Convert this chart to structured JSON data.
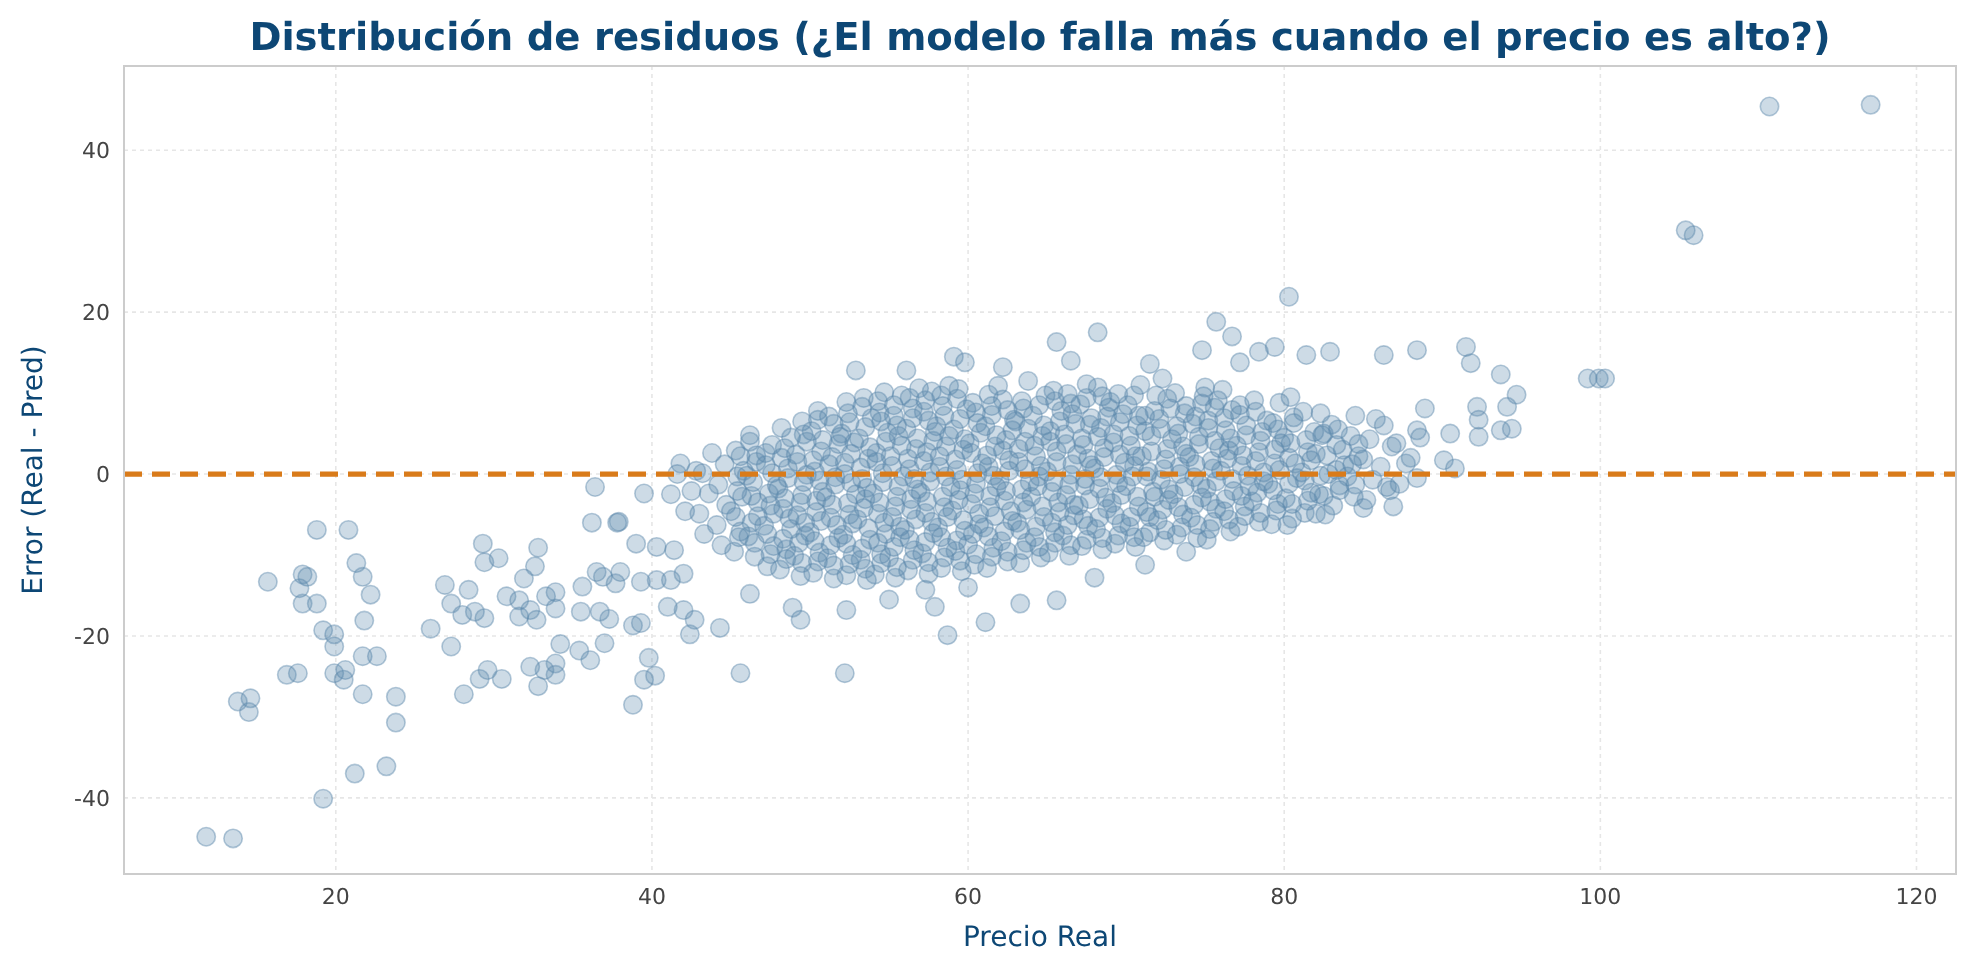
{
  "chart_data": {
    "type": "scatter",
    "title": "Distribución de residuos (¿El modelo falla más cuando el precio es alto?)",
    "xlabel": "Precio Real",
    "ylabel": "Error (Real - Pred)",
    "color": "#5b87ab",
    "marker": "circle",
    "grid": true,
    "xlim": [
      6.6,
      122.5
    ],
    "xticks": [
      20,
      40,
      60,
      80,
      100,
      120
    ],
    "ylim": [
      -49.4,
      50.4
    ],
    "yticks": [
      -40,
      -20,
      0,
      20,
      40
    ],
    "ref_lines": [
      {
        "axis": "y",
        "value": 0,
        "color": "#d97b1a",
        "line_style": "dashed"
      }
    ],
    "x": [
      11.8,
      13.5,
      13.8,
      14.5,
      14.6,
      15.7,
      18.8,
      20.8,
      17.9,
      18.2,
      17.7,
      17.9,
      18.8,
      19.2,
      19.9,
      19.9,
      16.9,
      17.6,
      21.3,
      21.7,
      22.2,
      21.8,
      21.7,
      22.6,
      19.9,
      20.6,
      20.5,
      21.7,
      23.8,
      23.8,
      21.2,
      23.2,
      19.2,
      26.0,
      26.9,
      27.3,
      27.3,
      28.4,
      28.0,
      28.8,
      29.4,
      28.1,
      29.1,
      29.6,
      30.5,
      29.3,
      29.4,
      30.3,
      30.8,
      31.6,
      31.6,
      32.3,
      32.7,
      31.9,
      32.6,
      32.8,
      33.3,
      33.9,
      33.9,
      32.3,
      32.8,
      33.2,
      33.9,
      33.9,
      34.2,
      35.4,
      36.1,
      35.5,
      35.6,
      36.5,
      36.9,
      37.7,
      38.0,
      36.7,
      37.3,
      37.0,
      36.2,
      37.8,
      36.4,
      38.8,
      39.8,
      39.5,
      40.2,
      38.8,
      39.3,
      39.0,
      39.3,
      40.3,
      41.2,
      42.0,
      41.0,
      42.0,
      42.7,
      42.4,
      39.5,
      40.3,
      41.4,
      37.9,
      41.8,
      52.9,
      56.1,
      59.1,
      59.8,
      65.6,
      68.2,
      62.2,
      66.5,
      71.5,
      77.2,
      45.6,
      52.2,
      58.7,
      61.1,
      52.3,
      48.9,
      49.4,
      44.3,
      57.3,
      57.9,
      63.3,
      65.6,
      73.8,
      71.2,
      46.2,
      55.0,
      60.0,
      68.0,
      75.1,
      80.2,
      82.0,
      85.0,
      86.9,
      86.7,
      80.3,
      75.7,
      76.7,
      74.8,
      78.4,
      79.4,
      81.4,
      82.9,
      86.3,
      88.4,
      91.5,
      91.8,
      93.7,
      94.7,
      92.2,
      94.1,
      92.3,
      92.3,
      93.7,
      94.4,
      90.5,
      88.9,
      88.4,
      90.1,
      90.8,
      99.2,
      99.9,
      100.3,
      110.7,
      117.1,
      105.4,
      105.9,
      41.2,
      41.6,
      42.1,
      42.5,
      42.8,
      43.3,
      43.0,
      43.6,
      43.2,
      43.8,
      44.4,
      44.1,
      44.7,
      44.2,
      44.6,
      45.2,
      45.6,
      45.0,
      45.4,
      45.8,
      45.3,
      46.5,
      46.1,
      46.7,
      46.3,
      46.0,
      46.6,
      46.2,
      47.3,
      47.7,
      47.1,
      47.5,
      47.9,
      47.2,
      47.6,
      48.1,
      48.5,
      48.8,
      48.3,
      48.0,
      48.6,
      48.4,
      48.2,
      49.4,
      49.0,
      49.7,
      49.2,
      49.5,
      49.8,
      49.1,
      49.6,
      50.2,
      50.6,
      50.0,
      50.4,
      50.8,
      50.3,
      50.7,
      50.1,
      50.5,
      51.5,
      51.1,
      51.8,
      51.3,
      51.0,
      51.6,
      51.4,
      51.9,
      51.2,
      52.3,
      52.7,
      52.1,
      52.5,
      52.9,
      52.2,
      52.6,
      52.0,
      52.4,
      53.6,
      53.2,
      53.8,
      53.0,
      53.5,
      53.3,
      53.7,
      53.1,
      53.9,
      53.4,
      54.1,
      54.5,
      54.8,
      54.3,
      54.0,
      54.6,
      54.2,
      54.9,
      54.4,
      54.7,
      55.4,
      55.0,
      55.7,
      55.2,
      55.5,
      55.9,
      55.1,
      55.6,
      55.3,
      55.8,
      56.2,
      56.6,
      56.0,
      56.4,
      56.8,
      56.3,
      56.7,
      56.1,
      56.5,
      56.9,
      57.5,
      57.1,
      57.8,
      57.3,
      57.0,
      57.6,
      57.4,
      57.9,
      57.2,
      57.7,
      58.3,
      58.7,
      58.1,
      58.5,
      58.9,
      58.2,
      58.6,
      58.0,
      58.4,
      58.8,
      59.6,
      59.2,
      59.8,
      59.0,
      59.5,
      59.3,
      59.7,
      59.1,
      59.9,
      59.4,
      60.4,
      60.0,
      60.7,
      60.2,
      60.5,
      60.9,
      60.1,
      60.6,
      60.3,
      61.2,
      61.6,
      61.0,
      61.4,
      61.8,
      61.3,
      61.7,
      61.1,
      61.5,
      61.9,
      62.5,
      62.1,
      62.8,
      62.3,
      62.0,
      62.6,
      62.4,
      62.9,
      62.2,
      63.3,
      63.7,
      63.1,
      63.5,
      63.9,
      63.2,
      63.6,
      63.0,
      63.4,
      63.8,
      64.6,
      64.2,
      64.8,
      64.0,
      64.5,
      64.3,
      64.7,
      64.1,
      64.9,
      65.1,
      65.5,
      65.8,
      65.3,
      65.0,
      65.6,
      65.2,
      65.9,
      65.4,
      66.4,
      66.0,
      66.7,
      66.2,
      66.5,
      66.9,
      66.1,
      66.6,
      66.3,
      67.2,
      67.6,
      67.0,
      67.4,
      67.8,
      67.3,
      67.7,
      67.1,
      67.5,
      68.5,
      68.1,
      68.8,
      68.3,
      68.0,
      68.6,
      68.4,
      68.9,
      68.2,
      69.3,
      69.7,
      69.1,
      69.5,
      69.9,
      69.2,
      69.6,
      69.0,
      70.6,
      70.2,
      70.8,
      70.0,
      70.5,
      70.3,
      70.7,
      70.1,
      70.9,
      71.1,
      71.5,
      71.8,
      71.3,
      71.0,
      71.6,
      71.2,
      71.9,
      72.4,
      72.0,
      72.7,
      72.2,
      72.5,
      72.9,
      72.1,
      72.6,
      72.3,
      73.2,
      73.6,
      73.0,
      73.4,
      73.8,
      73.3,
      73.7,
      73.1,
      74.5,
      74.1,
      74.8,
      74.3,
      74.0,
      74.6,
      74.4,
      74.9,
      75.3,
      75.7,
      75.1,
      75.5,
      75.9,
      75.2,
      75.6,
      75.0,
      76.6,
      76.2,
      76.8,
      76.0,
      76.5,
      76.3,
      76.7,
      76.1,
      77.1,
      77.5,
      77.8,
      77.3,
      77.0,
      77.6,
      77.2,
      78.4,
      78.0,
      78.7,
      78.2,
      78.5,
      78.9,
      78.1,
      79.2,
      79.6,
      79.0,
      79.4,
      79.8,
      79.3,
      79.7,
      80.5,
      80.1,
      80.8,
      80.3,
      80.0,
      80.6,
      80.4,
      81.3,
      81.7,
      81.1,
      81.5,
      81.9,
      81.2,
      82.6,
      82.2,
      82.8,
      82.0,
      82.5,
      82.3,
      83.1,
      83.5,
      83.8,
      83.3,
      83.0,
      84.4,
      84.0,
      84.7,
      84.2,
      84.5,
      85.2,
      85.6,
      85.0,
      85.4,
      85.8,
      86.5,
      86.1,
      86.8,
      86.3,
      87.3,
      87.7,
      87.1,
      88.4,
      88.0,
      88.6,
      45.5,
      45.3,
      45.7,
      45.4,
      45.6,
      46.5,
      46.3,
      46.7,
      46.4,
      46.6,
      46.2,
      47.5,
      47.3,
      47.7,
      47.4,
      47.6,
      47.2,
      48.5,
      48.3,
      48.7,
      48.4,
      48.6,
      48.2,
      48.8,
      49.5,
      49.3,
      49.7,
      49.4,
      49.6,
      49.2,
      49.8,
      49.5,
      50.5,
      50.3,
      50.7,
      50.4,
      50.6,
      50.2,
      50.8,
      50.5,
      51.5,
      51.3,
      51.7,
      51.4,
      51.6,
      51.2,
      51.8,
      51.5,
      52.5,
      52.3,
      52.7,
      52.4,
      52.6,
      52.2,
      52.8,
      52.5,
      52.3,
      53.5,
      53.3,
      53.7,
      53.4,
      53.6,
      53.2,
      53.8,
      53.5,
      53.3,
      54.5,
      54.3,
      54.7,
      54.4,
      54.6,
      54.2,
      54.8,
      54.5,
      54.3,
      55.5,
      55.3,
      55.7,
      55.4,
      55.6,
      55.2,
      55.8,
      55.5,
      55.3,
      56.5,
      56.3,
      56.7,
      56.4,
      56.6,
      56.2,
      56.8,
      56.5,
      56.3,
      57.5,
      57.3,
      57.7,
      57.4,
      57.6,
      57.2,
      57.8,
      57.5,
      57.3,
      58.5,
      58.3,
      58.7,
      58.4,
      58.6,
      58.2,
      58.8,
      58.5,
      58.3,
      59.5,
      59.3,
      59.7,
      59.4,
      59.6,
      59.2,
      59.8,
      59.5,
      59.3,
      60.5,
      60.3,
      60.7,
      60.4,
      60.6,
      60.2,
      60.8,
      60.5,
      61.5,
      61.3,
      61.7,
      61.4,
      61.6,
      61.2,
      61.8,
      61.5,
      61.3,
      62.5,
      62.3,
      62.7,
      62.4,
      62.6,
      62.2,
      62.8,
      62.5,
      63.5,
      63.3,
      63.7,
      63.4,
      63.6,
      63.2,
      63.8,
      63.5,
      64.5,
      64.3,
      64.7,
      64.4,
      64.6,
      64.2,
      64.8,
      64.5,
      65.5,
      65.3,
      65.7,
      65.4,
      65.6,
      65.2,
      65.8,
      65.5,
      66.5,
      66.3,
      66.7,
      66.4,
      66.6,
      66.2,
      66.8,
      66.5,
      67.5,
      67.3,
      67.7,
      67.4,
      67.6,
      67.2,
      67.8,
      67.5,
      68.5,
      68.3,
      68.7,
      68.4,
      68.6,
      68.2,
      68.8,
      68.5,
      69.5,
      69.3,
      69.7,
      69.4,
      69.6,
      69.2,
      69.8,
      69.5,
      70.5,
      70.3,
      70.7,
      70.4,
      70.6,
      70.2,
      70.8,
      70.5,
      71.5,
      71.3,
      71.7,
      71.4,
      71.6,
      71.2,
      71.8,
      72.5,
      72.3,
      72.7,
      72.4,
      72.6,
      72.2,
      72.8,
      73.5,
      73.3,
      73.7,
      73.4,
      73.6,
      73.2,
      73.8,
      74.5,
      74.3,
      74.7,
      74.4,
      74.6,
      74.2,
      74.8,
      75.5,
      75.3,
      75.7,
      75.4,
      75.6,
      75.2,
      75.8,
      76.5,
      76.3,
      76.7,
      76.4,
      76.6,
      76.2,
      77.5,
      77.3,
      77.7,
      77.4,
      77.6,
      77.2,
      78.5,
      78.3,
      78.7,
      78.4,
      78.6,
      78.2,
      79.5,
      79.3,
      79.7,
      79.4,
      79.6,
      80.5,
      80.3,
      80.7,
      80.4,
      80.6,
      81.5,
      81.3,
      81.7,
      81.4,
      82.5,
      82.3,
      82.7,
      82.4,
      83.5,
      83.3,
      83.7,
      83.4,
      84.5,
      84.3,
      84.7
    ],
    "values": [
      -44.8,
      -45.0,
      -28.1,
      -29.4,
      -27.7,
      -13.3,
      -6.9,
      -6.9,
      -12.4,
      -12.7,
      -14.1,
      -16.0,
      -16.0,
      -19.3,
      -19.8,
      -21.3,
      -24.8,
      -24.6,
      -11.0,
      -12.7,
      -14.9,
      -18.1,
      -22.5,
      -22.5,
      -24.6,
      -24.2,
      -25.4,
      -27.2,
      -27.5,
      -30.7,
      -37.0,
      -36.1,
      -40.1,
      -19.1,
      -13.7,
      -16.0,
      -21.3,
      -14.3,
      -17.4,
      -17.0,
      -17.8,
      -27.2,
      -25.3,
      -24.2,
      -25.3,
      -8.6,
      -10.9,
      -10.4,
      -15.1,
      -15.6,
      -17.6,
      -16.8,
      -18.0,
      -12.9,
      -11.4,
      -9.1,
      -15.1,
      -14.6,
      -16.6,
      -23.8,
      -26.2,
      -24.2,
      -23.4,
      -24.8,
      -21.0,
      -21.8,
      -23.0,
      -17.0,
      -13.9,
      -12.1,
      -12.7,
      -13.5,
      -12.1,
      -17.0,
      -17.9,
      -20.9,
      -6.0,
      -6.0,
      -1.6,
      -28.5,
      -22.7,
      -25.4,
      -24.9,
      -18.7,
      -18.4,
      -8.6,
      -13.3,
      -13.1,
      -13.1,
      -12.3,
      -16.4,
      -16.8,
      -18.0,
      -19.8,
      -2.4,
      -9.0,
      -9.4,
      -5.9,
      1.3,
      12.8,
      12.8,
      14.5,
      13.8,
      16.3,
      17.5,
      13.2,
      14.0,
      13.6,
      13.8,
      -24.6,
      -24.6,
      -19.9,
      -18.3,
      -16.8,
      -16.5,
      -18.0,
      -19.0,
      -14.3,
      -16.4,
      -16.0,
      -15.6,
      -9.6,
      -11.2,
      -14.8,
      -15.5,
      -14.0,
      -12.8,
      -8.1,
      -6.3,
      -4.9,
      -4.2,
      -4.0,
      -2.0,
      21.9,
      18.8,
      17.0,
      15.3,
      15.1,
      15.7,
      14.7,
      15.1,
      14.7,
      15.3,
      15.7,
      13.7,
      12.3,
      9.8,
      8.3,
      8.3,
      6.7,
      4.6,
      5.4,
      5.6,
      5.0,
      8.1,
      5.4,
      1.7,
      0.7,
      11.8,
      11.8,
      11.8,
      45.4,
      45.6,
      30.1,
      29.5,
      -2.5,
      0.0,
      -4.6,
      -2.1,
      0.4,
      -7.4,
      -4.9,
      -2.4,
      0.1,
      2.6,
      -8.8,
      -6.3,
      -3.8,
      -1.3,
      1.2,
      -9.6,
      -7.1,
      -4.6,
      -2.1,
      0.4,
      2.9,
      -10.2,
      -7.7,
      -5.2,
      -2.7,
      -0.2,
      2.3,
      4.8,
      -11.4,
      -8.9,
      -6.4,
      -3.9,
      -1.4,
      1.1,
      3.6,
      -11.8,
      -9.3,
      -6.8,
      -4.3,
      -1.8,
      0.7,
      3.2,
      5.7,
      -12.6,
      -10.1,
      -7.6,
      -5.1,
      -2.6,
      -0.1,
      2.4,
      4.9,
      -12.2,
      -9.7,
      -7.2,
      -4.7,
      -2.2,
      0.3,
      2.8,
      5.3,
      7.8,
      -12.9,
      -10.4,
      -7.9,
      -5.4,
      -2.9,
      -0.4,
      2.1,
      4.6,
      7.1,
      -12.5,
      -10.0,
      -7.5,
      -5.0,
      -2.5,
      0.0,
      2.5,
      5.0,
      7.5,
      -13.1,
      -10.6,
      -8.1,
      -5.6,
      -3.1,
      -0.6,
      1.9,
      4.4,
      6.9,
      9.4,
      -12.4,
      -9.9,
      -7.4,
      -4.9,
      -2.4,
      0.1,
      2.6,
      5.1,
      7.6,
      10.1,
      -12.8,
      -10.3,
      -7.8,
      -5.3,
      -2.8,
      -0.3,
      2.2,
      4.7,
      7.2,
      9.7,
      -11.9,
      -9.4,
      -6.9,
      -4.4,
      -1.9,
      0.6,
      3.1,
      5.6,
      8.1,
      10.6,
      -12.3,
      -9.8,
      -7.3,
      -4.8,
      -2.3,
      0.2,
      2.7,
      5.2,
      7.7,
      10.2,
      -11.6,
      -9.1,
      -6.6,
      -4.1,
      -1.6,
      0.9,
      3.4,
      5.9,
      8.4,
      10.9,
      -12.0,
      -9.5,
      -7.0,
      -4.5,
      -2.0,
      0.5,
      3.0,
      5.5,
      8.0,
      10.5,
      -11.2,
      -8.7,
      -6.2,
      -3.7,
      -1.2,
      1.3,
      3.8,
      6.3,
      8.8,
      -11.6,
      -9.1,
      -6.6,
      -4.1,
      -1.6,
      0.9,
      3.4,
      5.9,
      8.4,
      10.9,
      -10.8,
      -8.3,
      -5.8,
      -3.3,
      -0.8,
      1.7,
      4.2,
      6.7,
      9.2,
      -11.0,
      -8.5,
      -6.0,
      -3.5,
      -1.0,
      1.5,
      4.0,
      6.5,
      9.0,
      11.5,
      -10.3,
      -7.8,
      -5.3,
      -2.8,
      -0.3,
      2.2,
      4.7,
      7.2,
      9.7,
      -9.7,
      -7.2,
      -4.7,
      -2.2,
      0.3,
      2.8,
      5.3,
      7.8,
      10.3,
      -10.1,
      -7.6,
      -5.1,
      -2.6,
      -0.1,
      2.4,
      4.9,
      7.4,
      9.9,
      -8.9,
      -6.4,
      -3.9,
      -1.4,
      1.1,
      3.6,
      6.1,
      8.6,
      11.1,
      -9.3,
      -6.8,
      -4.3,
      -1.8,
      0.7,
      3.2,
      5.7,
      8.2,
      10.7,
      -8.6,
      -6.1,
      -3.6,
      -1.1,
      1.4,
      3.9,
      6.4,
      8.9,
      -9.0,
      -6.5,
      -4.0,
      -1.5,
      1.0,
      3.5,
      6.0,
      8.5,
      11.0,
      -7.8,
      -5.3,
      -2.8,
      -0.3,
      2.2,
      4.7,
      7.2,
      9.7,
      -8.2,
      -5.7,
      -3.2,
      -0.7,
      1.8,
      4.3,
      6.8,
      9.3,
      11.8,
      -7.5,
      -5.0,
      -2.5,
      0.0,
      2.5,
      5.0,
      7.5,
      10.0,
      -7.9,
      -5.4,
      -2.9,
      -0.4,
      2.1,
      4.6,
      7.1,
      9.6,
      -6.8,
      -4.3,
      -1.8,
      0.7,
      3.2,
      5.7,
      8.2,
      10.7,
      -7.1,
      -4.6,
      -2.1,
      0.4,
      2.9,
      5.4,
      7.9,
      10.4,
      -6.5,
      -4.0,
      -1.5,
      1.0,
      3.5,
      6.0,
      8.5,
      -5.9,
      -3.4,
      -0.9,
      1.6,
      4.1,
      6.6,
      9.1,
      -6.2,
      -3.7,
      -1.2,
      1.3,
      3.8,
      6.3,
      8.8,
      -5.5,
      -3.0,
      -0.5,
      2.0,
      4.5,
      7.0,
      9.5,
      -4.8,
      -2.3,
      0.2,
      2.7,
      5.2,
      7.7,
      -5.0,
      -2.5,
      0.0,
      2.5,
      5.0,
      7.5,
      -3.9,
      -1.4,
      1.1,
      3.6,
      6.1,
      -2.8,
      -0.3,
      2.2,
      4.7,
      7.2,
      -3.2,
      -0.7,
      1.8,
      4.3,
      6.8,
      -1.6,
      0.9,
      3.4,
      6.0,
      -1.2,
      1.3,
      3.8,
      -0.5,
      2.0,
      4.5,
      -7.8,
      -5.3,
      -2.8,
      -0.3,
      2.2,
      -8.5,
      -6.0,
      -3.5,
      -1.0,
      1.5,
      4.0,
      -9.9,
      -7.4,
      -4.9,
      -2.4,
      0.1,
      2.6,
      -10.5,
      -8.0,
      -5.5,
      -3.0,
      -0.5,
      2.0,
      4.5,
      -11.0,
      -8.5,
      -6.0,
      -3.5,
      -1.0,
      1.5,
      4.0,
      6.5,
      -10.8,
      -8.3,
      -5.8,
      -3.3,
      -0.8,
      1.7,
      4.2,
      6.7,
      -11.3,
      -8.8,
      -6.3,
      -3.8,
      -1.3,
      1.2,
      3.7,
      6.2,
      -11.1,
      -8.6,
      -6.1,
      -3.6,
      -1.1,
      1.4,
      3.9,
      6.4,
      8.9,
      -11.7,
      -9.2,
      -6.7,
      -4.2,
      -1.7,
      0.8,
      3.3,
      5.8,
      8.3,
      -11.0,
      -8.5,
      -6.0,
      -3.5,
      -1.0,
      1.5,
      4.0,
      6.5,
      9.0,
      -11.5,
      -9.0,
      -6.5,
      -4.0,
      -1.5,
      1.0,
      3.5,
      6.0,
      8.5,
      -10.6,
      -8.1,
      -5.6,
      -3.1,
      -0.6,
      1.9,
      4.4,
      6.9,
      9.4,
      -10.9,
      -8.4,
      -5.9,
      -3.4,
      -0.9,
      1.6,
      4.1,
      6.6,
      9.1,
      -10.3,
      -7.8,
      -5.3,
      -2.8,
      -0.3,
      2.2,
      4.7,
      7.2,
      9.7,
      -10.7,
      -8.2,
      -5.7,
      -3.2,
      -0.7,
      1.8,
      4.3,
      6.8,
      9.3,
      -9.9,
      -7.4,
      -4.9,
      -2.4,
      0.1,
      2.6,
      5.1,
      7.6,
      -10.2,
      -7.7,
      -5.2,
      -2.7,
      -0.2,
      2.3,
      4.8,
      7.3,
      9.8,
      -9.6,
      -7.1,
      -4.6,
      -2.1,
      0.4,
      2.9,
      5.4,
      7.9,
      -9.4,
      -6.9,
      -4.4,
      -1.9,
      0.6,
      3.1,
      5.6,
      8.1,
      -9.0,
      -6.5,
      -4.0,
      -1.5,
      1.0,
      3.5,
      6.0,
      8.5,
      -8.5,
      -6.0,
      -3.5,
      -1.0,
      1.5,
      4.0,
      6.5,
      9.0,
      -8.8,
      -6.3,
      -3.8,
      -1.3,
      1.2,
      3.7,
      6.2,
      8.7,
      -8.1,
      -5.6,
      -3.1,
      -0.6,
      1.9,
      4.4,
      6.9,
      9.4,
      -7.9,
      -5.4,
      -2.9,
      -0.4,
      2.1,
      4.6,
      7.1,
      9.6,
      -7.6,
      -5.1,
      -2.6,
      -0.1,
      2.4,
      4.9,
      7.4,
      9.9,
      -7.8,
      -5.3,
      -2.8,
      -0.3,
      2.2,
      4.7,
      7.2,
      9.7,
      -7.2,
      -4.7,
      -2.2,
      0.3,
      2.8,
      5.3,
      7.8,
      -6.9,
      -4.4,
      -1.9,
      0.6,
      3.1,
      5.6,
      8.1,
      -6.6,
      -4.1,
      -1.6,
      0.9,
      3.4,
      5.9,
      8.4,
      -6.3,
      -3.8,
      -1.3,
      1.2,
      3.7,
      6.2,
      8.7,
      -5.9,
      -3.4,
      -0.9,
      1.6,
      4.1,
      6.6,
      9.1,
      -5.6,
      -3.1,
      -0.6,
      1.9,
      4.4,
      6.9,
      -5.2,
      -2.7,
      -0.2,
      2.3,
      4.8,
      7.3,
      -4.8,
      -2.3,
      0.2,
      2.7,
      5.2,
      7.7,
      -4.5,
      -2.0,
      0.5,
      3.0,
      5.5,
      -3.7,
      -1.2,
      1.3,
      3.8,
      6.3,
      -3.3,
      -0.8,
      1.7,
      4.2,
      -2.7,
      -0.2,
      2.3,
      4.8,
      -2.0,
      0.5,
      3.0,
      5.5,
      -1.3,
      1.2,
      3.7
    ]
  }
}
